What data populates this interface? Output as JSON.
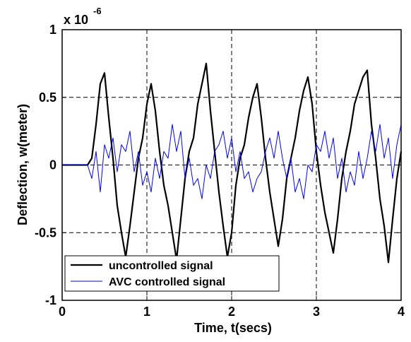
{
  "chart_data": {
    "type": "line",
    "ylabel": "Deflection, w(meter)",
    "xlabel": "Time, t(secs)",
    "y_multiplier": "x 10",
    "y_multiplier_exponent": "-6",
    "x": [
      0,
      0.05,
      0.1,
      0.15,
      0.2,
      0.25,
      0.3,
      0.35,
      0.4,
      0.45,
      0.5,
      0.55,
      0.6,
      0.65,
      0.7,
      0.75,
      0.8,
      0.85,
      0.9,
      0.95,
      1,
      1.05,
      1.1,
      1.15,
      1.2,
      1.25,
      1.3,
      1.35,
      1.4,
      1.45,
      1.5,
      1.55,
      1.6,
      1.65,
      1.7,
      1.75,
      1.8,
      1.85,
      1.9,
      1.95,
      2,
      2.05,
      2.1,
      2.15,
      2.2,
      2.25,
      2.3,
      2.35,
      2.4,
      2.45,
      2.5,
      2.55,
      2.6,
      2.65,
      2.7,
      2.75,
      2.8,
      2.85,
      2.9,
      2.95,
      3,
      3.05,
      3.1,
      3.15,
      3.2,
      3.25,
      3.3,
      3.35,
      3.4,
      3.45,
      3.5,
      3.55,
      3.6,
      3.65,
      3.7,
      3.75,
      3.8,
      3.85,
      3.9,
      3.95,
      4
    ],
    "series": [
      {
        "name": "uncontrolled signal",
        "color": "#000000",
        "width": 2.2,
        "values": [
          0,
          0,
          0,
          0,
          0,
          0,
          0,
          0.05,
          0.3,
          0.6,
          0.68,
          0.35,
          0.05,
          -0.3,
          -0.5,
          -0.68,
          -0.45,
          -0.2,
          0.05,
          0.2,
          0.45,
          0.6,
          0.4,
          0.1,
          -0.15,
          -0.3,
          -0.5,
          -0.7,
          -0.4,
          -0.1,
          0.1,
          0.2,
          0.45,
          0.6,
          0.75,
          0.4,
          0.1,
          -0.2,
          -0.45,
          -0.68,
          -0.5,
          -0.15,
          0.05,
          0.15,
          0.35,
          0.5,
          0.6,
          0.35,
          0.05,
          -0.2,
          -0.4,
          -0.6,
          -0.4,
          -0.1,
          0.05,
          0.2,
          0.4,
          0.55,
          0.65,
          0.45,
          0.1,
          -0.15,
          -0.35,
          -0.5,
          -0.65,
          -0.4,
          -0.1,
          0.1,
          0.25,
          0.45,
          0.55,
          0.65,
          0.7,
          0.3,
          0.05,
          -0.25,
          -0.45,
          -0.72,
          -0.4,
          -0.1,
          0.1
        ]
      },
      {
        "name": "AVC controlled signal",
        "color": "#0000ff",
        "width": 1,
        "values": [
          0,
          0,
          0,
          0,
          0,
          0,
          0,
          -0.1,
          0.1,
          -0.2,
          0.15,
          0.05,
          0.2,
          -0.05,
          0.15,
          0.1,
          0.25,
          -0.05,
          0.1,
          -0.15,
          -0.05,
          -0.2,
          0.05,
          -0.1,
          0.1,
          0.05,
          0.3,
          0.1,
          0.25,
          -0.1,
          0.05,
          -0.15,
          -0.1,
          -0.25,
          0,
          -0.1,
          0.1,
          0.15,
          0.25,
          0.05,
          0.2,
          -0.05,
          0.1,
          -0.1,
          -0.05,
          -0.2,
          -0.1,
          -0.05,
          0.1,
          0.2,
          0.05,
          0.25,
          0.05,
          -0.1,
          0.05,
          -0.2,
          -0.1,
          -0.25,
          0,
          -0.05,
          0.15,
          0.1,
          0.25,
          0.05,
          0.2,
          -0.1,
          0.05,
          -0.2,
          -0.05,
          -0.15,
          0.1,
          -0.1,
          0.05,
          0.25,
          0.1,
          0.3,
          0.05,
          0.2,
          -0.1,
          0.15,
          0.3
        ]
      }
    ],
    "xlim": [
      0,
      4
    ],
    "xticks": [
      0,
      1,
      2,
      3,
      4
    ],
    "ylim": [
      -1,
      1
    ],
    "yticks": [
      -1,
      -0.5,
      0,
      0.5,
      1
    ],
    "grid": true,
    "legend": "lower left"
  }
}
